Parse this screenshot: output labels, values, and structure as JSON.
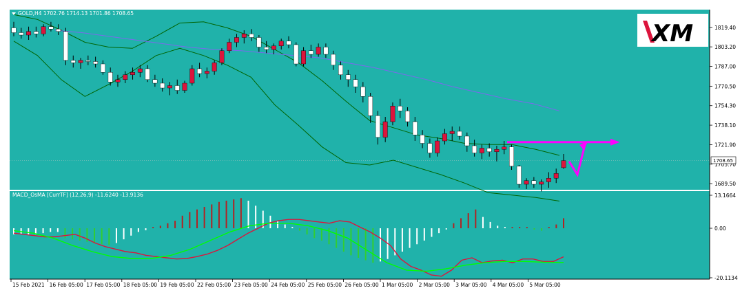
{
  "colors": {
    "background": "#20b2aa",
    "bull_candle": "#dc143c",
    "bear_candle": "#ffffff",
    "wick": "#000000",
    "bollinger": "#006400",
    "ma": "#7b68ee",
    "macd_main": "#dc143c",
    "macd_signal": "#00ff00",
    "forecast_arrow": "#ff00ff",
    "axis_text": "#000000"
  },
  "logo": {
    "text": "XM",
    "icon": "xm-logo"
  },
  "main_panel": {
    "header": "GOLD,H4  1702.76 1714.13 1701.86 1708.65",
    "current_price_label": "1708.65",
    "price_ticks": [
      "1819.40",
      "1803.20",
      "1787.00",
      "1770.50",
      "1754.30",
      "1738.10",
      "1721.90",
      "1705.70",
      "1689.50"
    ]
  },
  "macd_panel": {
    "header": "MACD_OsMA [CurrTF] (12,26,9) -11.6240 -13.9136",
    "ticks": [
      "13.1664",
      "0.00",
      "-20.1134"
    ]
  },
  "time_labels": [
    "15 Feb 2021",
    "16 Feb 05:00",
    "17 Feb 05:00",
    "18 Feb 05:00",
    "19 Feb 05:00",
    "22 Feb 05:00",
    "23 Feb 05:00",
    "24 Feb 05:00",
    "25 Feb 05:00",
    "26 Feb 05:00",
    "1 Mar 05:00",
    "2 Mar 05:00",
    "3 Mar 05:00",
    "4 Mar 05:00",
    "5 Mar 05:00"
  ],
  "chart_data": [
    {
      "type": "candlestick",
      "symbol": "GOLD",
      "timeframe": "H4",
      "ohlc_last": {
        "open": 1702.76,
        "high": 1714.13,
        "low": 1701.86,
        "close": 1708.65
      },
      "candles": [
        [
          1819,
          1824,
          1812,
          1815
        ],
        [
          1815,
          1819,
          1810,
          1813
        ],
        [
          1813,
          1820,
          1809,
          1816
        ],
        [
          1816,
          1820,
          1811,
          1814
        ],
        [
          1814,
          1822,
          1812,
          1820
        ],
        [
          1820,
          1824,
          1816,
          1818
        ],
        [
          1818,
          1822,
          1813,
          1816
        ],
        [
          1816,
          1819,
          1788,
          1792
        ],
        [
          1792,
          1796,
          1786,
          1790
        ],
        [
          1790,
          1794,
          1785,
          1792
        ],
        [
          1792,
          1796,
          1788,
          1791
        ],
        [
          1791,
          1795,
          1786,
          1789
        ],
        [
          1789,
          1792,
          1780,
          1782
        ],
        [
          1782,
          1786,
          1771,
          1774
        ],
        [
          1774,
          1780,
          1770,
          1776
        ],
        [
          1776,
          1783,
          1773,
          1780
        ],
        [
          1780,
          1786,
          1776,
          1782
        ],
        [
          1782,
          1788,
          1778,
          1785
        ],
        [
          1785,
          1788,
          1774,
          1776
        ],
        [
          1776,
          1780,
          1770,
          1773
        ],
        [
          1773,
          1777,
          1766,
          1769
        ],
        [
          1769,
          1774,
          1763,
          1771
        ],
        [
          1771,
          1776,
          1764,
          1767
        ],
        [
          1767,
          1775,
          1765,
          1773
        ],
        [
          1773,
          1788,
          1771,
          1785
        ],
        [
          1785,
          1790,
          1778,
          1781
        ],
        [
          1781,
          1786,
          1777,
          1783
        ],
        [
          1783,
          1792,
          1780,
          1790
        ],
        [
          1790,
          1802,
          1788,
          1800
        ],
        [
          1800,
          1810,
          1798,
          1807
        ],
        [
          1807,
          1814,
          1803,
          1811
        ],
        [
          1811,
          1817,
          1806,
          1814
        ],
        [
          1814,
          1818,
          1808,
          1811
        ],
        [
          1811,
          1813,
          1799,
          1803
        ],
        [
          1803,
          1808,
          1798,
          1801
        ],
        [
          1801,
          1806,
          1797,
          1804
        ],
        [
          1804,
          1810,
          1801,
          1808
        ],
        [
          1808,
          1812,
          1802,
          1805
        ],
        [
          1805,
          1807,
          1787,
          1789
        ],
        [
          1789,
          1803,
          1787,
          1800
        ],
        [
          1800,
          1805,
          1794,
          1797
        ],
        [
          1797,
          1806,
          1795,
          1803
        ],
        [
          1803,
          1806,
          1794,
          1797
        ],
        [
          1797,
          1800,
          1784,
          1788
        ],
        [
          1788,
          1791,
          1776,
          1780
        ],
        [
          1780,
          1784,
          1770,
          1776
        ],
        [
          1776,
          1780,
          1765,
          1770
        ],
        [
          1770,
          1774,
          1757,
          1762
        ],
        [
          1762,
          1765,
          1740,
          1746
        ],
        [
          1746,
          1750,
          1722,
          1728
        ],
        [
          1728,
          1745,
          1724,
          1741
        ],
        [
          1741,
          1757,
          1738,
          1754
        ],
        [
          1754,
          1760,
          1744,
          1750
        ],
        [
          1750,
          1753,
          1737,
          1741
        ],
        [
          1741,
          1745,
          1725,
          1730
        ],
        [
          1730,
          1734,
          1719,
          1723
        ],
        [
          1723,
          1727,
          1711,
          1715
        ],
        [
          1715,
          1728,
          1712,
          1725
        ],
        [
          1725,
          1735,
          1722,
          1731
        ],
        [
          1731,
          1737,
          1725,
          1733
        ],
        [
          1733,
          1737,
          1726,
          1729
        ],
        [
          1729,
          1732,
          1716,
          1721
        ],
        [
          1721,
          1726,
          1712,
          1715
        ],
        [
          1715,
          1722,
          1710,
          1719
        ],
        [
          1719,
          1723,
          1712,
          1716
        ],
        [
          1716,
          1721,
          1708,
          1718
        ],
        [
          1718,
          1725,
          1714,
          1720
        ],
        [
          1720,
          1722,
          1701,
          1704
        ],
        [
          1704,
          1705,
          1686,
          1689
        ],
        [
          1689,
          1694,
          1685,
          1692
        ],
        [
          1692,
          1695,
          1686,
          1689
        ],
        [
          1689,
          1693,
          1683,
          1691
        ],
        [
          1691,
          1699,
          1686,
          1694
        ],
        [
          1694,
          1702,
          1690,
          1698
        ],
        [
          1702.76,
          1714.13,
          1701.86,
          1708.65
        ]
      ],
      "moving_average": [
        1817,
        1815,
        1812,
        1809,
        1806,
        1803,
        1801,
        1800,
        1798,
        1796,
        1794,
        1790,
        1786,
        1781,
        1776,
        1770,
        1765,
        1760,
        1756,
        1750
      ],
      "bollinger_upper": [
        1830,
        1826,
        1817,
        1807,
        1803,
        1802,
        1812,
        1823,
        1824,
        1819,
        1812,
        1801,
        1790,
        1775,
        1758,
        1742,
        1736,
        1730,
        1727,
        1723,
        1722,
        1722,
        1718,
        1713
      ],
      "bollinger_lower": [
        1808,
        1796,
        1776,
        1762,
        1772,
        1783,
        1796,
        1802,
        1796,
        1788,
        1778,
        1755,
        1738,
        1720,
        1707,
        1705,
        1709,
        1703,
        1697,
        1690,
        1682,
        1680,
        1678,
        1675
      ],
      "forecast_points": [
        [
          1708,
          1697
        ],
        [
          1724,
          1724
        ]
      ],
      "forecast_target": 1724
    },
    {
      "type": "macd",
      "params": "(12,26,9)",
      "main_value": -11.624,
      "signal_value": -13.9136,
      "ylim": [
        -20.1134,
        13.1664
      ],
      "histogram": [
        -2.5,
        -2.5,
        -2.5,
        -2.5,
        -2,
        -1.5,
        -1.5,
        -4,
        -4.5,
        -5,
        -5.5,
        -6,
        -6.5,
        -6.8,
        -6,
        -4.5,
        -3,
        -1.5,
        -0.8,
        0.5,
        1,
        2,
        3,
        5,
        6.5,
        7.5,
        8.5,
        9.5,
        10.5,
        11,
        11.5,
        12,
        11,
        9,
        7,
        5,
        3,
        1.5,
        0.5,
        -1,
        -2.5,
        -4,
        -5,
        -6.5,
        -8,
        -9.5,
        -11,
        -12,
        -13,
        -14,
        -13.5,
        -12.5,
        -11,
        -9.5,
        -8,
        -6.5,
        -5,
        -3.5,
        -2,
        -0.5,
        2,
        4,
        6,
        7.5,
        4.5,
        2.5,
        1,
        0.5,
        0.5,
        0.5,
        0.5,
        -0.5,
        -1,
        0.5,
        1.5,
        4
      ],
      "main_line": [
        -2,
        -2.5,
        -3,
        -3.5,
        -3.5,
        -3,
        -2.5,
        -4,
        -6,
        -7.5,
        -8.5,
        -9.5,
        -10,
        -11,
        -11.5,
        -12,
        -12.5,
        -12.3,
        -11.5,
        -10.5,
        -9,
        -7,
        -4.5,
        -2,
        0,
        2,
        3,
        3.5,
        3.5,
        3,
        2.5,
        2,
        3,
        2.5,
        0.5,
        -1.5,
        -4,
        -7,
        -12.5,
        -15.5,
        -17,
        -19,
        -19.5,
        -17,
        -13,
        -12,
        -14,
        -13.3,
        -13,
        -14,
        -12.5,
        -12.5,
        -13.5,
        -13.5,
        -11.6
      ],
      "signal_line": [
        -1,
        -2,
        -4,
        -7,
        -9.5,
        -11.5,
        -12.3,
        -12.3,
        -11,
        -8.5,
        -5,
        -1.5,
        1,
        2,
        2,
        1,
        -1,
        -4,
        -9,
        -14,
        -17,
        -17.5,
        -16.5,
        -15,
        -14,
        -13.5,
        -13.5,
        -13.8,
        -13.9
      ]
    }
  ]
}
